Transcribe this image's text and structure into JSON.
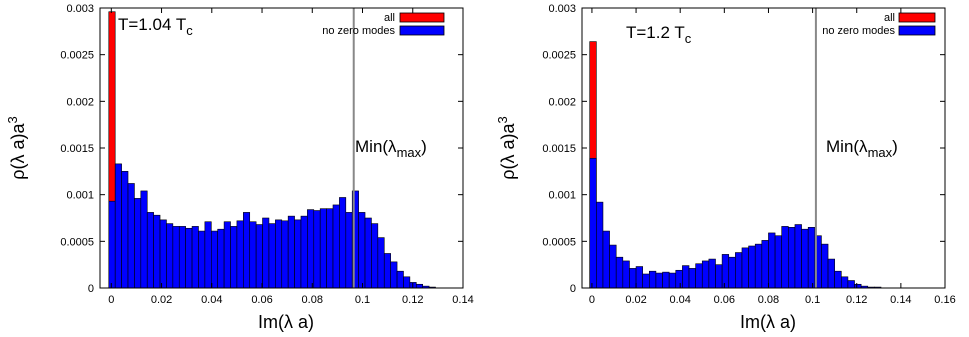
{
  "chart_data": [
    {
      "type": "bar",
      "annotation": {
        "prefix": "T=1.04 T",
        "sub": "c"
      },
      "xlabel": "Im(λ a)",
      "ylabel": {
        "base": "ρ(λ a)a",
        "sup": "3"
      },
      "xlim": [
        -0.0045,
        0.14
      ],
      "ylim": [
        0,
        0.003
      ],
      "xticks": [
        "0",
        "0.02",
        "0.04",
        "0.06",
        "0.08",
        "0.1",
        "0.12",
        "0.14"
      ],
      "xtick_values": [
        0,
        0.02,
        0.04,
        0.06,
        0.08,
        0.1,
        0.12,
        0.14
      ],
      "yticks": [
        "0",
        "0.0005",
        "0.001",
        "0.0015",
        "0.002",
        "0.0025",
        "0.003"
      ],
      "ytick_values": [
        0,
        0.0005,
        0.001,
        0.0015,
        0.002,
        0.0025,
        0.003
      ],
      "bin_start": -0.001,
      "bin_width": 0.00255,
      "vline": {
        "x": 0.0965,
        "label_prefix": "Min(λ",
        "label_sub": "max",
        "label_suffix": ")"
      },
      "legend": {
        "position": "top-right"
      },
      "series": [
        {
          "name": "all",
          "color": "#ff0000",
          "values": [
            0.00296,
            1e-05,
            1e-05
          ]
        },
        {
          "name": "no zero modes",
          "color": "#0000ff",
          "values": [
            0.00093,
            0.00133,
            0.00125,
            0.00112,
            0.00096,
            0.00104,
            0.00081,
            0.00078,
            0.00073,
            0.00069,
            0.00066,
            0.00066,
            0.00064,
            0.00066,
            0.00061,
            0.00071,
            0.00061,
            0.00063,
            0.00071,
            0.00066,
            0.00072,
            0.00081,
            0.00071,
            0.00068,
            0.00075,
            0.00069,
            0.00073,
            0.00072,
            0.00077,
            0.00073,
            0.00077,
            0.00084,
            0.00083,
            0.00085,
            0.00085,
            0.00089,
            0.00097,
            0.00081,
            0.00104,
            0.00081,
            0.00075,
            0.00069,
            0.00054,
            0.00037,
            0.00028,
            0.00018,
            0.00012,
            6e-05,
            4e-05,
            2e-05,
            1e-05
          ]
        }
      ]
    },
    {
      "type": "bar",
      "annotation": {
        "prefix": "T=1.2 T",
        "sub": "c"
      },
      "xlabel": "Im(λ a)",
      "ylabel": {
        "base": "ρ(λ a)a",
        "sup": "3"
      },
      "xlim": [
        -0.0045,
        0.16
      ],
      "ylim": [
        0,
        0.003
      ],
      "xticks": [
        "0",
        "0.02",
        "0.04",
        "0.06",
        "0.08",
        "0.1",
        "0.12",
        "0.14",
        "0.16"
      ],
      "xtick_values": [
        0,
        0.02,
        0.04,
        0.06,
        0.08,
        0.1,
        0.12,
        0.14,
        0.16
      ],
      "yticks": [
        "0",
        "0.0005",
        "0.001",
        "0.0015",
        "0.002",
        "0.0025",
        "0.003"
      ],
      "ytick_values": [
        0,
        0.0005,
        0.001,
        0.0015,
        0.002,
        0.0025,
        0.003
      ],
      "bin_start": -0.001,
      "bin_width": 0.003,
      "vline": {
        "x": 0.1015,
        "label_prefix": "Min(λ",
        "label_sub": "max",
        "label_suffix": ")"
      },
      "legend": {
        "position": "top-right"
      },
      "series": [
        {
          "name": "all",
          "color": "#ff0000",
          "values": [
            0.00264,
            1e-05
          ]
        },
        {
          "name": "no zero modes",
          "color": "#0000ff",
          "values": [
            0.00139,
            0.00092,
            0.00061,
            0.00046,
            0.00033,
            0.00029,
            0.00021,
            0.00023,
            0.00015,
            0.00018,
            0.00016,
            0.00017,
            0.00016,
            0.00019,
            0.00024,
            0.00021,
            0.00026,
            0.00029,
            0.00031,
            0.00025,
            0.00036,
            0.00033,
            0.00038,
            0.00043,
            0.00045,
            0.00047,
            0.00051,
            0.00059,
            0.00056,
            0.00066,
            0.00065,
            0.00068,
            0.00063,
            0.00065,
            0.00056,
            0.00047,
            0.00031,
            0.00018,
            0.00012,
            8e-05,
            4e-05,
            2e-05,
            1e-05,
            1e-05
          ]
        }
      ]
    }
  ]
}
